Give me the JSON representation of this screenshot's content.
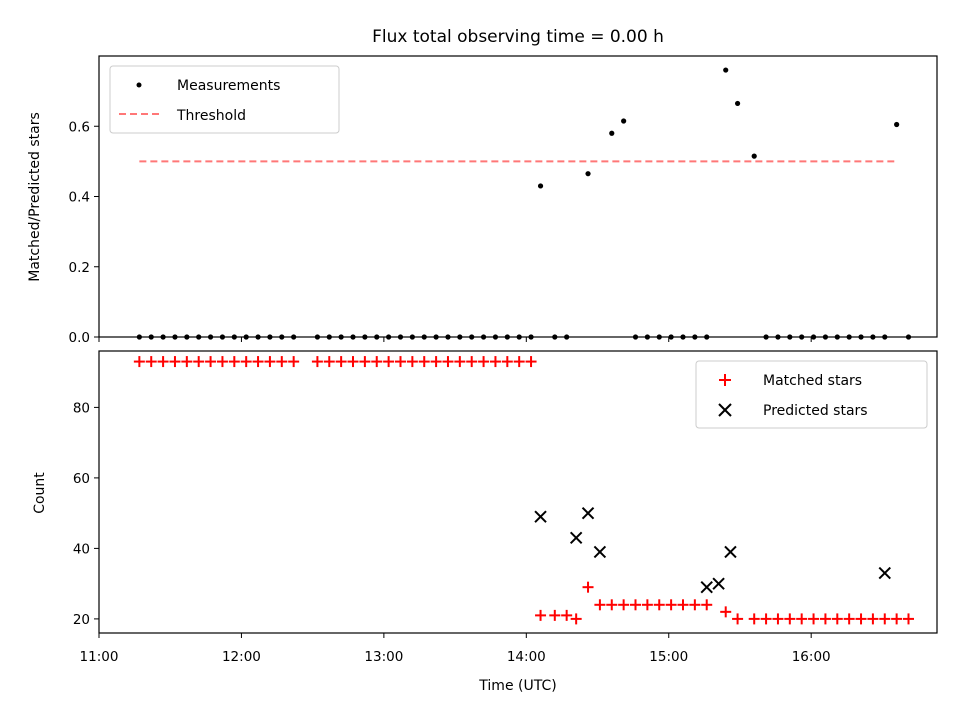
{
  "chart_data": [
    {
      "type": "scatter",
      "title": "Flux total observing time = 0.00 h",
      "xlabel": "",
      "ylabel": "Matched/Predicted stars",
      "xlim": [
        "11:00",
        "16:53"
      ],
      "ylim": [
        0,
        0.8
      ],
      "y_ticks": [
        0.0,
        0.2,
        0.4,
        0.6
      ],
      "y_tick_labels": [
        "0.0",
        "0.2",
        "0.4",
        "0.6"
      ],
      "grid": false,
      "legend": "top-left",
      "threshold": {
        "name": "Threshold",
        "value": 0.5,
        "x_range": [
          "11:17",
          "16:35"
        ],
        "color": "#ff7777",
        "style": "dashed"
      },
      "series": [
        {
          "name": "Measurements",
          "color": "#000000",
          "marker": "dot",
          "x": [
            "11:17",
            "11:22",
            "11:27",
            "11:32",
            "11:37",
            "11:42",
            "11:47",
            "11:52",
            "11:57",
            "12:02",
            "12:07",
            "12:12",
            "12:17",
            "12:22",
            "12:32",
            "12:37",
            "12:42",
            "12:47",
            "12:52",
            "12:57",
            "13:02",
            "13:07",
            "13:12",
            "13:17",
            "13:22",
            "13:27",
            "13:32",
            "13:37",
            "13:42",
            "13:47",
            "13:52",
            "13:57",
            "14:02",
            "14:06",
            "14:12",
            "14:17",
            "14:26",
            "14:36",
            "14:41",
            "14:46",
            "14:51",
            "14:56",
            "15:01",
            "15:06",
            "15:11",
            "15:16",
            "15:24",
            "15:29",
            "15:36",
            "15:41",
            "15:46",
            "15:51",
            "15:56",
            "16:01",
            "16:06",
            "16:11",
            "16:16",
            "16:21",
            "16:26",
            "16:31",
            "16:36",
            "16:41"
          ],
          "y": [
            0,
            0,
            0,
            0,
            0,
            0,
            0,
            0,
            0,
            0,
            0,
            0,
            0,
            0,
            0,
            0,
            0,
            0,
            0,
            0,
            0,
            0,
            0,
            0,
            0,
            0,
            0,
            0,
            0,
            0,
            0,
            0,
            0,
            0.43,
            0,
            0,
            0.465,
            0.58,
            0.615,
            0,
            0,
            0,
            0,
            0,
            0,
            0,
            0.76,
            0.665,
            0.515,
            0,
            0,
            0,
            0,
            0,
            0,
            0,
            0,
            0,
            0,
            0,
            0.605,
            0
          ]
        }
      ]
    },
    {
      "type": "scatter",
      "title": "",
      "xlabel": "Time (UTC)",
      "ylabel": "Count",
      "xlim": [
        "11:00",
        "16:53"
      ],
      "x_ticks": [
        "11:00",
        "12:00",
        "13:00",
        "14:00",
        "15:00",
        "16:00"
      ],
      "ylim": [
        16,
        96
      ],
      "y_ticks": [
        20,
        40,
        60,
        80
      ],
      "y_tick_labels": [
        "20",
        "40",
        "60",
        "80"
      ],
      "grid": false,
      "legend": "top-right",
      "series": [
        {
          "name": "Matched stars",
          "color": "#ff0000",
          "marker": "plus",
          "x": [
            "11:17",
            "11:22",
            "11:27",
            "11:32",
            "11:37",
            "11:42",
            "11:47",
            "11:52",
            "11:57",
            "12:02",
            "12:07",
            "12:12",
            "12:17",
            "12:22",
            "12:32",
            "12:37",
            "12:42",
            "12:47",
            "12:52",
            "12:57",
            "13:02",
            "13:07",
            "13:12",
            "13:17",
            "13:22",
            "13:27",
            "13:32",
            "13:37",
            "13:42",
            "13:47",
            "13:52",
            "13:57",
            "14:02",
            "14:06",
            "14:12",
            "14:17",
            "14:21",
            "14:26",
            "14:31",
            "14:36",
            "14:41",
            "14:46",
            "14:51",
            "14:56",
            "15:01",
            "15:06",
            "15:11",
            "15:16",
            "15:24",
            "15:29",
            "15:36",
            "15:41",
            "15:46",
            "15:51",
            "15:56",
            "16:01",
            "16:06",
            "16:11",
            "16:16",
            "16:21",
            "16:26",
            "16:31",
            "16:36",
            "16:41"
          ],
          "y": [
            93,
            93,
            93,
            93,
            93,
            93,
            93,
            93,
            93,
            93,
            93,
            93,
            93,
            93,
            93,
            93,
            93,
            93,
            93,
            93,
            93,
            93,
            93,
            93,
            93,
            93,
            93,
            93,
            93,
            93,
            93,
            93,
            93,
            21,
            21,
            21,
            20,
            29,
            24,
            24,
            24,
            24,
            24,
            24,
            24,
            24,
            24,
            24,
            22,
            20,
            20,
            20,
            20,
            20,
            20,
            20,
            20,
            20,
            20,
            20,
            20,
            20,
            20,
            20
          ]
        },
        {
          "name": "Predicted stars",
          "color": "#000000",
          "marker": "x",
          "x": [
            "14:06",
            "14:21",
            "14:26",
            "14:31",
            "15:16",
            "15:21",
            "15:26",
            "16:31"
          ],
          "y": [
            49,
            43,
            50,
            39,
            29,
            30,
            39,
            33
          ]
        }
      ]
    }
  ]
}
